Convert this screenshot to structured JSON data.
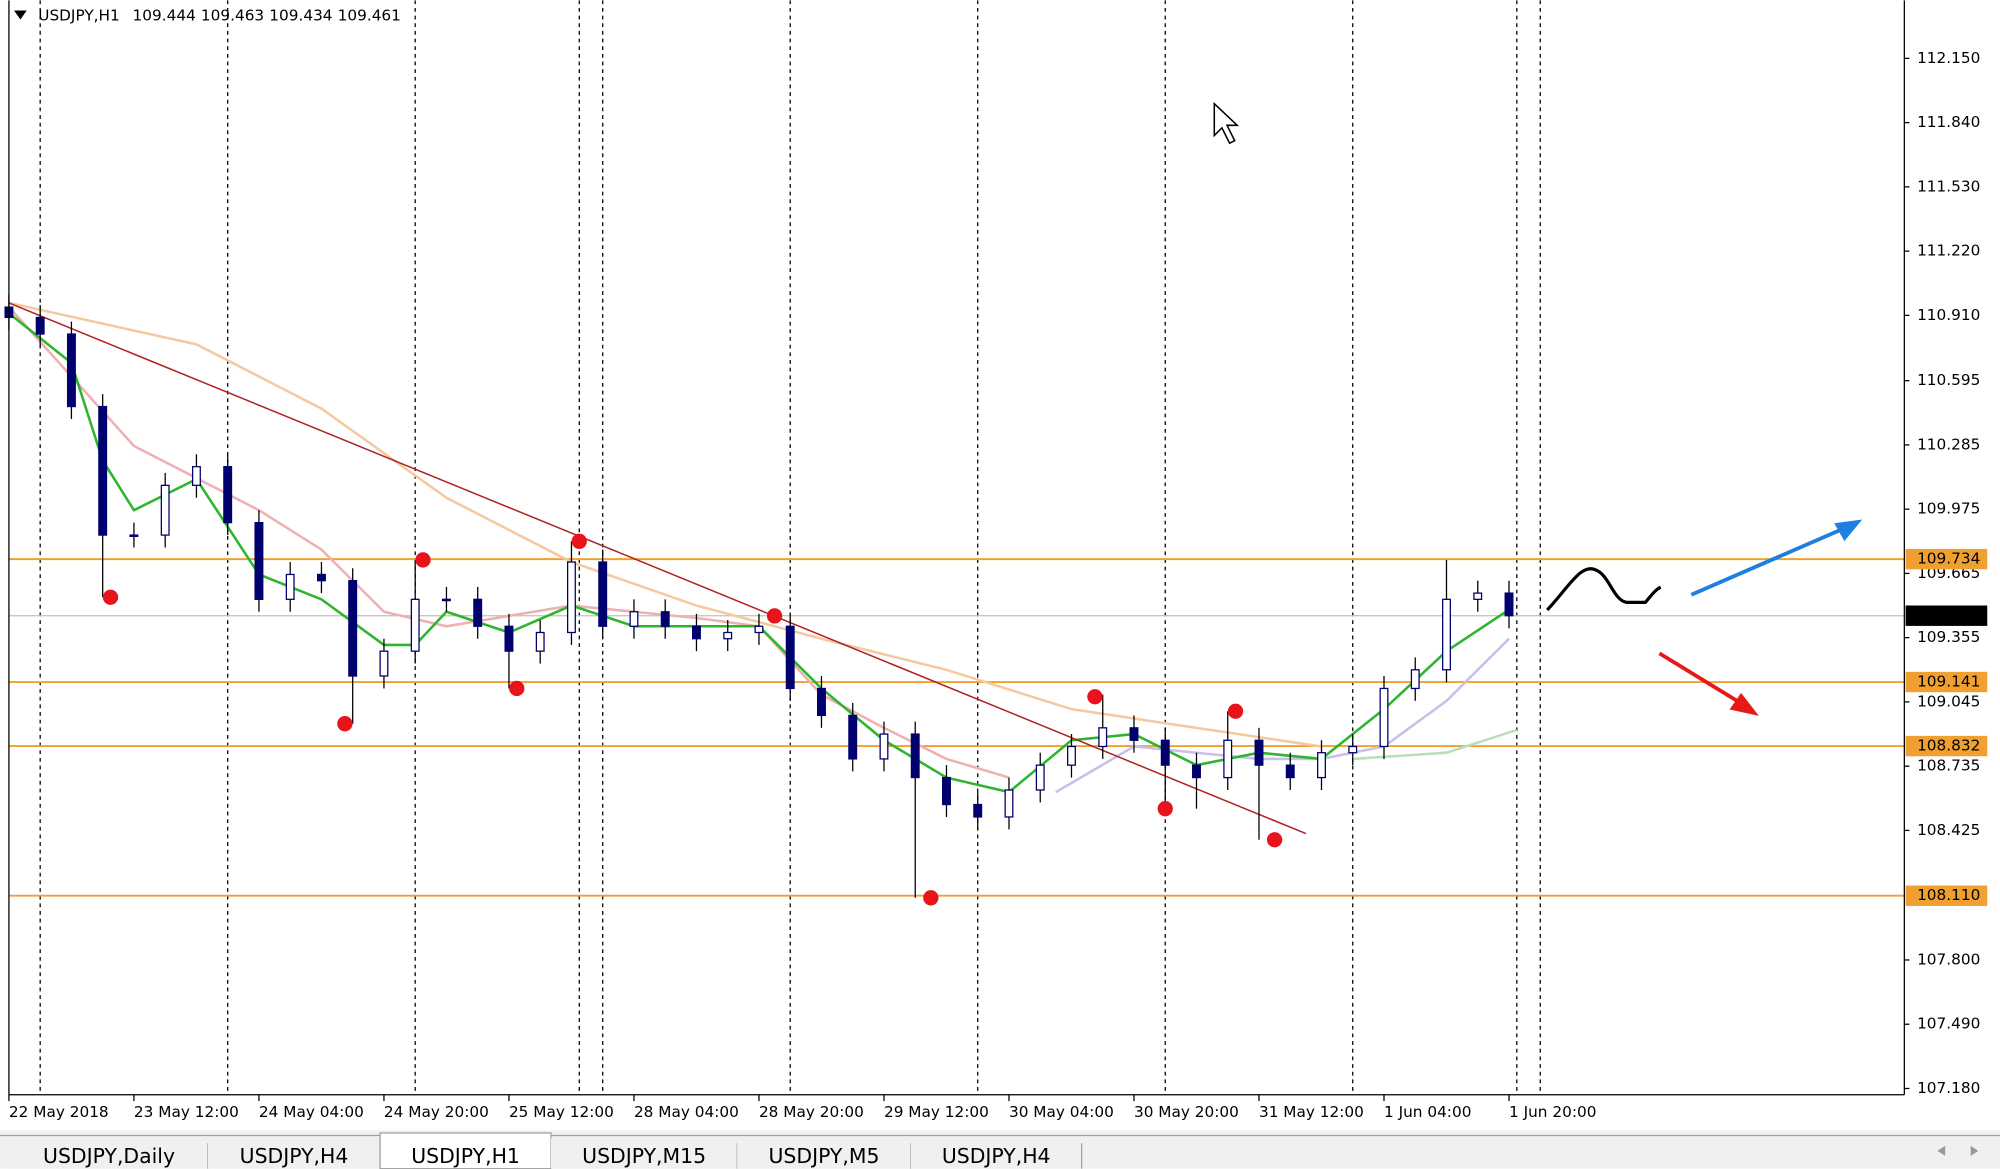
{
  "chart_data": {
    "type": "candlestick",
    "title": "USDJPY,H1",
    "header_values": [
      "109.444",
      "109.463",
      "109.434",
      "109.461"
    ],
    "x": [
      0,
      4,
      8,
      12,
      16,
      20,
      24,
      28,
      32,
      36,
      40,
      44,
      48,
      52,
      56,
      60,
      64,
      68,
      72,
      76,
      80,
      84,
      88,
      92,
      96,
      100,
      104,
      108,
      112,
      116,
      120,
      124,
      128,
      132,
      136,
      140,
      144,
      148,
      152,
      156,
      160,
      164,
      168,
      172,
      176,
      180,
      184,
      188,
      192
    ],
    "open": [
      110.95,
      110.9,
      110.82,
      110.47,
      109.85,
      109.85,
      110.09,
      110.18,
      109.91,
      109.54,
      109.66,
      109.63,
      109.17,
      109.29,
      109.54,
      109.54,
      109.41,
      109.29,
      109.38,
      109.72,
      109.41,
      109.48,
      109.41,
      109.35,
      109.38,
      109.41,
      109.11,
      108.98,
      108.77,
      108.89,
      108.68,
      108.55,
      108.49,
      108.62,
      108.74,
      108.83,
      108.92,
      108.86,
      108.74,
      108.68,
      108.86,
      108.74,
      108.68,
      108.8,
      108.83,
      109.11,
      109.2,
      109.54,
      109.57
    ],
    "high": [
      111.01,
      110.96,
      110.88,
      110.53,
      109.91,
      110.15,
      110.24,
      110.24,
      109.97,
      109.72,
      109.72,
      109.69,
      109.35,
      109.73,
      109.6,
      109.6,
      109.47,
      109.44,
      109.82,
      109.78,
      109.54,
      109.54,
      109.47,
      109.44,
      109.47,
      109.47,
      109.17,
      109.04,
      108.95,
      108.95,
      108.74,
      108.61,
      108.68,
      108.8,
      108.89,
      109.08,
      108.98,
      108.92,
      108.8,
      109.0,
      108.92,
      108.8,
      108.86,
      108.89,
      109.17,
      109.26,
      109.73,
      109.63,
      109.63
    ],
    "low": [
      110.84,
      110.76,
      110.41,
      109.55,
      109.79,
      109.79,
      110.03,
      109.85,
      109.48,
      109.48,
      109.57,
      108.94,
      109.11,
      109.23,
      109.48,
      109.35,
      109.11,
      109.23,
      109.32,
      109.35,
      109.35,
      109.35,
      109.29,
      109.29,
      109.32,
      109.05,
      108.92,
      108.71,
      108.71,
      108.1,
      108.49,
      108.43,
      108.43,
      108.56,
      108.68,
      108.77,
      108.8,
      108.53,
      108.53,
      108.62,
      108.38,
      108.62,
      108.62,
      108.74,
      108.77,
      109.05,
      109.14,
      109.48,
      109.4
    ],
    "close": [
      110.9,
      110.82,
      110.47,
      109.85,
      109.85,
      110.09,
      110.18,
      109.91,
      109.54,
      109.66,
      109.63,
      109.17,
      109.29,
      109.54,
      109.54,
      109.41,
      109.29,
      109.38,
      109.72,
      109.41,
      109.48,
      109.41,
      109.35,
      109.38,
      109.41,
      109.11,
      108.98,
      108.77,
      108.89,
      108.68,
      108.55,
      108.49,
      108.62,
      108.74,
      108.83,
      108.92,
      108.86,
      108.74,
      108.68,
      108.86,
      108.74,
      108.68,
      108.8,
      108.83,
      109.11,
      109.2,
      109.54,
      109.57,
      109.461
    ],
    "color": "#00006e",
    "wick_color": "#000000",
    "series": [
      {
        "color": "#f5c9a0",
        "x": [
          0,
          24,
          40,
          56,
          72,
          88,
          104,
          120,
          136,
          152,
          168
        ],
        "values": [
          110.97,
          110.77,
          110.46,
          110.03,
          109.72,
          109.51,
          109.35,
          109.2,
          109.01,
          108.92,
          108.83
        ]
      },
      {
        "color": "#eeb0b0",
        "x": [
          0,
          16,
          32,
          40,
          48,
          56,
          72,
          88,
          96,
          104,
          112,
          120,
          128
        ],
        "values": [
          110.95,
          110.28,
          109.97,
          109.78,
          109.48,
          109.41,
          109.51,
          109.45,
          109.41,
          109.08,
          108.92,
          108.77,
          108.68
        ]
      },
      {
        "color": "#c8c0e8",
        "x": [
          134,
          144,
          152,
          160,
          168,
          176,
          184,
          192
        ],
        "values": [
          108.61,
          108.83,
          108.8,
          108.77,
          108.77,
          108.83,
          109.05,
          109.35
        ]
      },
      {
        "color": "#b8e0b8",
        "x": [
          172,
          184,
          193
        ],
        "values": [
          108.77,
          108.8,
          108.91
        ]
      },
      {
        "color": "#2db52d",
        "x": [
          0,
          8,
          12,
          16,
          24,
          32,
          40,
          48,
          52,
          56,
          64,
          72,
          80,
          88,
          96,
          104,
          112,
          120,
          128,
          136,
          144,
          152,
          160,
          168,
          176,
          184,
          192
        ],
        "values": [
          110.92,
          110.68,
          110.21,
          109.97,
          110.12,
          109.66,
          109.54,
          109.32,
          109.32,
          109.48,
          109.38,
          109.51,
          109.41,
          109.41,
          109.41,
          109.11,
          108.86,
          108.68,
          108.61,
          108.86,
          108.89,
          108.74,
          108.8,
          108.77,
          109.01,
          109.29,
          109.49
        ]
      }
    ],
    "trendline": {
      "color": "#b22222",
      "x": [
        0,
        166
      ],
      "values": [
        110.97,
        108.41
      ]
    },
    "pivots": {
      "color": "#e8141c",
      "x": [
        13,
        43,
        53,
        65,
        73,
        98,
        118,
        139,
        148,
        157,
        162
      ],
      "values": [
        109.55,
        108.94,
        109.73,
        109.11,
        109.82,
        109.46,
        108.1,
        109.07,
        108.53,
        109.0,
        108.38
      ]
    },
    "levels": {
      "values": [
        109.734,
        109.141,
        108.832,
        108.11
      ],
      "value_labels": [
        "109.734",
        "109.141",
        "108.832",
        "108.110"
      ],
      "color": "#f0a030"
    },
    "last_price": 109.461,
    "xlim": [
      0,
      242.6
    ],
    "ylim": [
      107.15,
      112.43
    ],
    "yticks": [
      {
        "value": 112.15,
        "label": "112.150"
      },
      {
        "value": 111.84,
        "label": "111.840"
      },
      {
        "value": 111.53,
        "label": "111.530"
      },
      {
        "value": 111.22,
        "label": "111.220"
      },
      {
        "value": 110.91,
        "label": "110.910"
      },
      {
        "value": 110.595,
        "label": "110.595"
      },
      {
        "value": 110.285,
        "label": "110.285"
      },
      {
        "value": 109.975,
        "label": "109.975"
      },
      {
        "value": 109.665,
        "label": "109.665"
      },
      {
        "value": 109.355,
        "label": "109.355"
      },
      {
        "value": 109.045,
        "label": "109.045"
      },
      {
        "value": 108.735,
        "label": "108.735"
      },
      {
        "value": 108.425,
        "label": "108.425"
      },
      {
        "value": 107.8,
        "label": "107.800"
      },
      {
        "value": 107.49,
        "label": "107.490"
      },
      {
        "value": 107.18,
        "label": "107.180"
      }
    ],
    "xticks": [
      {
        "value": 0,
        "label": "22 May 2018"
      },
      {
        "value": 16,
        "label": "23 May 12:00"
      },
      {
        "value": 32,
        "label": "24 May 04:00"
      },
      {
        "value": 48,
        "label": "24 May 20:00"
      },
      {
        "value": 64,
        "label": "25 May 12:00"
      },
      {
        "value": 80,
        "label": "28 May 04:00"
      },
      {
        "value": 96,
        "label": "28 May 20:00"
      },
      {
        "value": 112,
        "label": "29 May 12:00"
      },
      {
        "value": 128,
        "label": "30 May 04:00"
      },
      {
        "value": 144,
        "label": "30 May 20:00"
      },
      {
        "value": 160,
        "label": "31 May 12:00"
      },
      {
        "value": 176,
        "label": "1 Jun 04:00"
      },
      {
        "value": 192,
        "label": "1 Jun 20:00"
      }
    ],
    "xgrid": [
      4,
      28,
      52,
      76,
      100,
      124,
      148,
      172,
      196
    ],
    "vlines": [
      73,
      193
    ],
    "grid": true,
    "tabs": {
      "items": [
        "USDJPY,Daily",
        "USDJPY,H4",
        "USDJPY,H1",
        "USDJPY,M15",
        "USDJPY,M5",
        "USDJPY,H4"
      ],
      "active": 2
    }
  }
}
